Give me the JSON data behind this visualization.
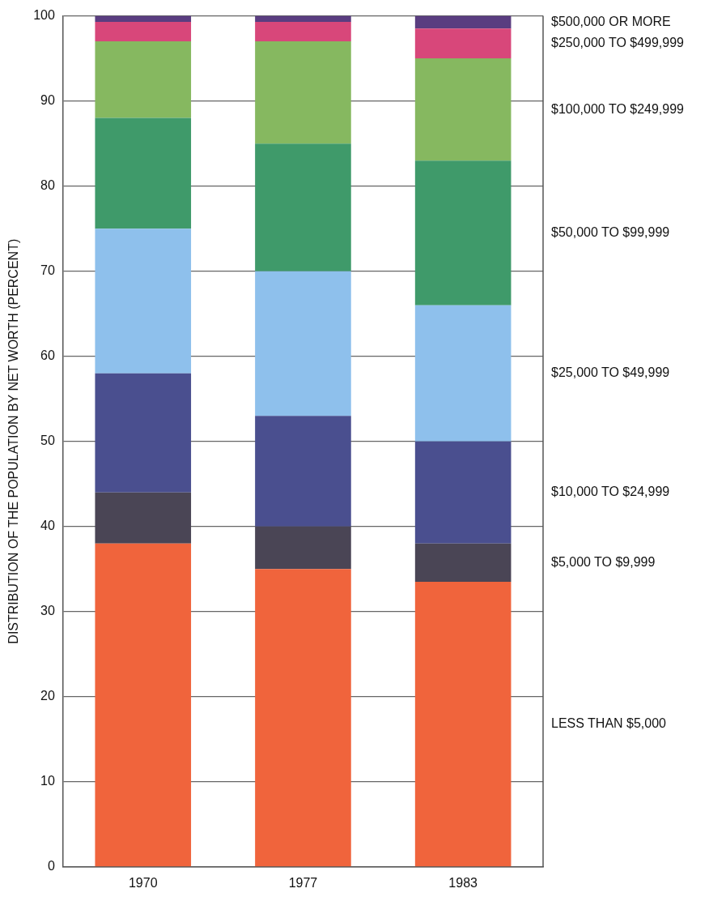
{
  "chart_data": {
    "type": "bar",
    "stacked": true,
    "ylabel": "DISTRIBUTION OF THE POPULATION BY NET WORTH (PERCENT)",
    "categories": [
      "1970",
      "1977",
      "1983"
    ],
    "ylim": [
      0,
      100
    ],
    "yticks": [
      0,
      10,
      20,
      30,
      40,
      50,
      60,
      70,
      80,
      90,
      100
    ],
    "grid": "y",
    "legend": false,
    "series": [
      {
        "name": "LESS THAN $5,000",
        "color": "#f0643c",
        "values": [
          38,
          35,
          33.5
        ]
      },
      {
        "name": "$5,000 TO $9,999",
        "color": "#4a4555",
        "values": [
          6,
          5,
          4.5
        ]
      },
      {
        "name": "$10,000 TO $24,999",
        "color": "#4a4f8f",
        "values": [
          14,
          13,
          12
        ]
      },
      {
        "name": "$25,000 TO $49,999",
        "color": "#8ec0ec",
        "values": [
          17,
          17,
          16
        ]
      },
      {
        "name": "$50,000 TO $99,999",
        "color": "#3f9a6a",
        "values": [
          13,
          15,
          17
        ]
      },
      {
        "name": "$100,000 TO $249,999",
        "color": "#86b860",
        "values": [
          9,
          12,
          12
        ]
      },
      {
        "name": "$250,000 TO $499,999",
        "color": "#d8477a",
        "values": [
          2.3,
          2.3,
          3.5
        ]
      },
      {
        "name": "$500,000 OR MORE",
        "color": "#5a3d80",
        "values": [
          0.7,
          0.7,
          1.5
        ]
      }
    ]
  }
}
